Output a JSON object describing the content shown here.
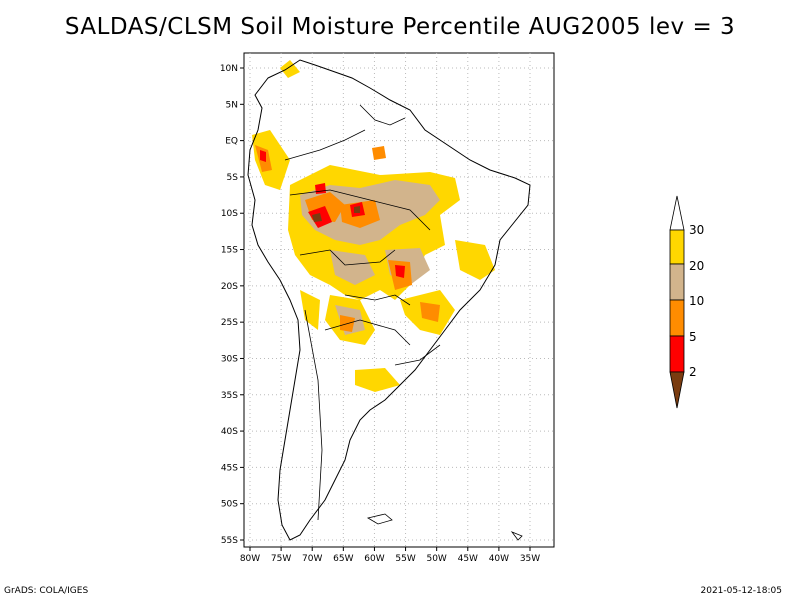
{
  "title": "SALDAS/CLSM Soil Moisture Percentile AUG2005 lev = 3",
  "map": {
    "region": "South America",
    "lat_labels": [
      "10N",
      "5N",
      "EQ",
      "5S",
      "10S",
      "15S",
      "20S",
      "25S",
      "30S",
      "35S",
      "40S",
      "45S",
      "50S",
      "55S"
    ],
    "lon_labels": [
      "80W",
      "75W",
      "70W",
      "65W",
      "60W",
      "55W",
      "50W",
      "45W",
      "40W",
      "35W"
    ]
  },
  "colorbar": {
    "labels": [
      "2",
      "5",
      "10",
      "20",
      "30"
    ],
    "colors": {
      "below_2": "#7a3c10",
      "2_5": "#ff0000",
      "5_10": "#ff8c00",
      "10_20": "#d2b48c",
      "20_30": "#ffd700",
      "above_30": "#ffffff"
    }
  },
  "footer": {
    "left": "GrADS: COLA/IGES",
    "right": "2021-05-12-18:05"
  }
}
